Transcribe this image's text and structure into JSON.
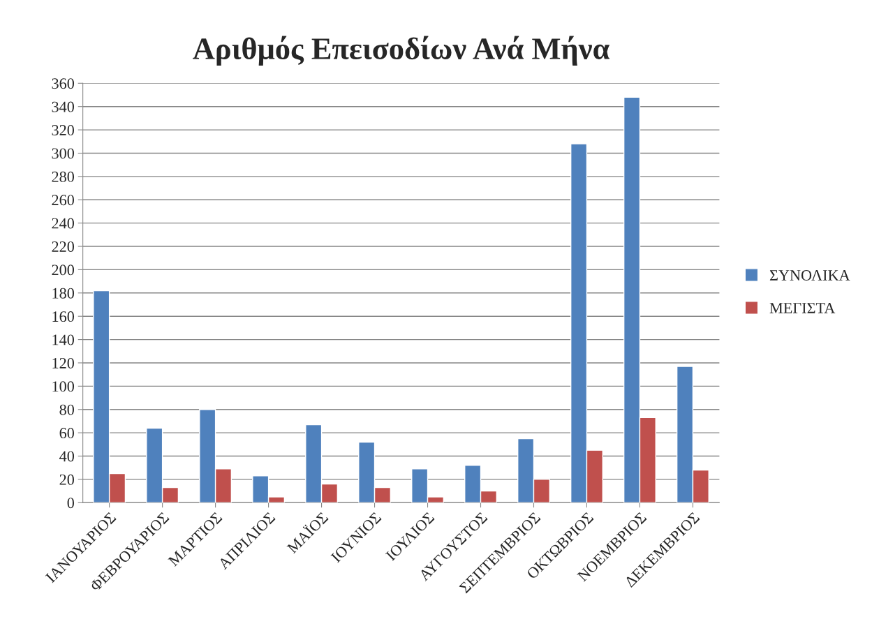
{
  "chart_data": {
    "type": "bar",
    "title": "Αριθμός Επεισοδίων Ανά Μήνα",
    "categories": [
      "ΙΑΝΟΥΑΡΙΟΣ",
      "ΦΕΒΡΟΥΑΡΙΟΣ",
      "ΜΑΡΤΙΟΣ",
      "ΑΠΡΙΛΙΟΣ",
      "ΜΑΪΟΣ",
      "ΙΟΥΝΙΟΣ",
      "ΙΟΥΛΙΟΣ",
      "ΑΥΓΟΥΣΤΟΣ",
      "ΣΕΠΤΕΜΒΡΙΟΣ",
      "ΟΚΤΩΒΡΙΟΣ",
      "ΝΟΕΜΒΡΙΟΣ",
      "ΔΕΚΕΜΒΡΙΟΣ"
    ],
    "series": [
      {
        "name": "ΣΥΝΟΛΙΚΑ",
        "color": "#4f81bd",
        "values": [
          182,
          64,
          80,
          23,
          67,
          52,
          29,
          32,
          55,
          308,
          348,
          117
        ]
      },
      {
        "name": "ΜΕΓΙΣΤΑ",
        "color": "#c0504d",
        "values": [
          25,
          13,
          29,
          5,
          16,
          13,
          5,
          10,
          20,
          45,
          73,
          28
        ]
      }
    ],
    "ylim": [
      0,
      360
    ],
    "yticks": [
      0,
      20,
      40,
      60,
      80,
      100,
      120,
      140,
      160,
      180,
      200,
      220,
      240,
      260,
      280,
      300,
      320,
      340,
      360
    ],
    "grid": "y",
    "legend": "right"
  }
}
